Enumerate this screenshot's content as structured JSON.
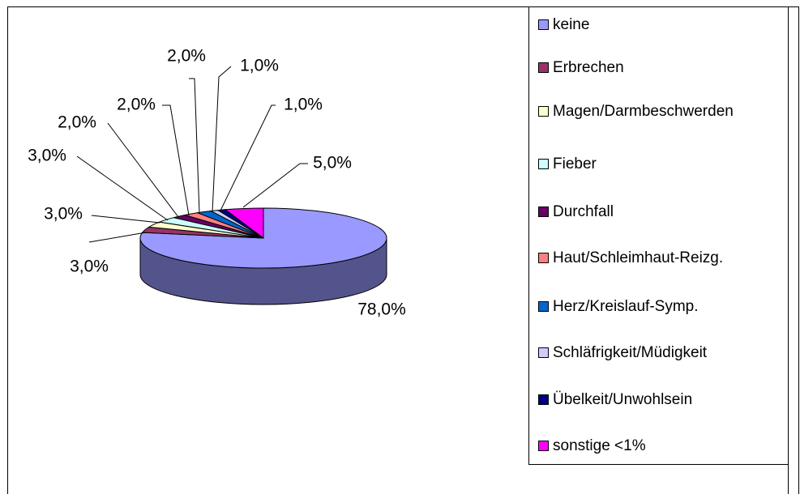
{
  "chart_data": {
    "type": "pie",
    "categories": [
      "keine",
      "Erbrechen",
      "Magen/Darmbeschwerden",
      "Fieber",
      "Durchfall",
      "Haut/Schleimhaut-Reizg.",
      "Herz/Kreislauf-Symp.",
      "Schläfrigkeit/Müdigkeit",
      "Übelkeit/Unwohlsein",
      "sonstige <1%"
    ],
    "values": [
      78,
      3,
      3,
      3,
      2,
      2,
      2,
      1,
      1,
      5
    ],
    "value_labels": [
      "78,0%",
      "3,0%",
      "3,0%",
      "3,0%",
      "2,0%",
      "2,0%",
      "2,0%",
      "1,0%",
      "1,0%",
      "5,0%"
    ],
    "colors": [
      "#9999ff",
      "#993366",
      "#ffffcc",
      "#ccffff",
      "#660066",
      "#ff8080",
      "#0066cc",
      "#ccccff",
      "#000080",
      "#ff00ff"
    ],
    "legend": "right"
  }
}
